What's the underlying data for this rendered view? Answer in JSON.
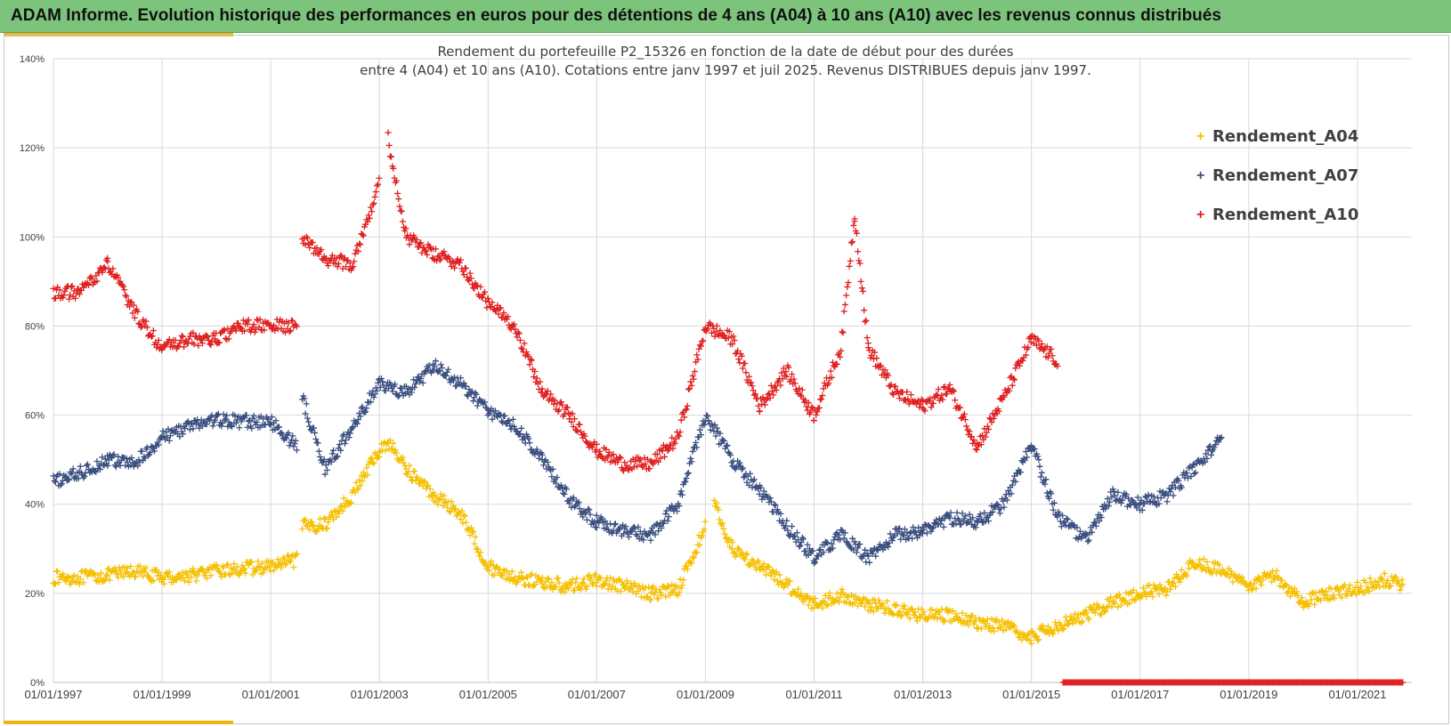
{
  "banner": {
    "title": "ADAM Informe. Evolution historique des performances en euros pour des détentions de 4 ans (A04) à 10 ans (A10) avec les revenus connus distribués",
    "background": "#7cc47c",
    "accent": "#f2b414"
  },
  "chart_data": {
    "type": "scatter",
    "title_lines": [
      "Rendement du portefeuille P2_15326 en fonction de la date de début pour des durées",
      "entre 4 (A04) et 10 ans (A10). Cotations  entre janv 1997 et juil 2025. Revenus DISTRIBUES depuis janv 1997."
    ],
    "marker": "+",
    "ylim": [
      0,
      1.4
    ],
    "yticks": [
      "0%",
      "20%",
      "40%",
      "60%",
      "80%",
      "100%",
      "120%",
      "140%"
    ],
    "xlim": [
      "1997-01-01",
      "2022-01-01"
    ],
    "xticks": [
      "01/01/1997",
      "01/01/1999",
      "01/01/2001",
      "01/01/2003",
      "01/01/2005",
      "01/01/2007",
      "01/01/2009",
      "01/01/2011",
      "01/01/2013",
      "01/01/2015",
      "01/01/2017",
      "01/01/2019",
      "01/01/2021"
    ],
    "grid": true,
    "legend_position": "top-right",
    "series": [
      {
        "name": "Rendement_A04",
        "color": "#f5c000",
        "points": [
          [
            "1997-01",
            0.235
          ],
          [
            "1997-07",
            0.235
          ],
          [
            "1998-01",
            0.24
          ],
          [
            "1998-07",
            0.25
          ],
          [
            "1999-01",
            0.235
          ],
          [
            "1999-07",
            0.24
          ],
          [
            "2000-01",
            0.25
          ],
          [
            "2000-07",
            0.255
          ],
          [
            "2001-01",
            0.26
          ],
          [
            "2001-07",
            0.275
          ],
          [
            "2001-08",
            0.35
          ],
          [
            "2002-01",
            0.355
          ],
          [
            "2002-07",
            0.42
          ],
          [
            "2003-01",
            0.52
          ],
          [
            "2003-03",
            0.54
          ],
          [
            "2003-07",
            0.48
          ],
          [
            "2004-01",
            0.42
          ],
          [
            "2004-07",
            0.38
          ],
          [
            "2005-01",
            0.26
          ],
          [
            "2005-07",
            0.235
          ],
          [
            "2006-01",
            0.225
          ],
          [
            "2006-07",
            0.215
          ],
          [
            "2007-01",
            0.23
          ],
          [
            "2007-07",
            0.215
          ],
          [
            "2008-01",
            0.2
          ],
          [
            "2008-07",
            0.21
          ],
          [
            "2009-01",
            0.35
          ],
          [
            "2009-03",
            0.4
          ],
          [
            "2009-07",
            0.3
          ],
          [
            "2010-01",
            0.26
          ],
          [
            "2010-07",
            0.22
          ],
          [
            "2011-01",
            0.175
          ],
          [
            "2011-07",
            0.195
          ],
          [
            "2012-01",
            0.175
          ],
          [
            "2012-07",
            0.165
          ],
          [
            "2013-01",
            0.15
          ],
          [
            "2013-07",
            0.15
          ],
          [
            "2014-01",
            0.135
          ],
          [
            "2014-07",
            0.125
          ],
          [
            "2015-01",
            0.1
          ],
          [
            "2015-07",
            0.13
          ],
          [
            "2016-01",
            0.15
          ],
          [
            "2016-07",
            0.18
          ],
          [
            "2017-01",
            0.2
          ],
          [
            "2017-07",
            0.21
          ],
          [
            "2018-01",
            0.27
          ],
          [
            "2018-07",
            0.25
          ],
          [
            "2019-01",
            0.22
          ],
          [
            "2019-07",
            0.24
          ],
          [
            "2020-01",
            0.18
          ],
          [
            "2020-07",
            0.2
          ],
          [
            "2021-01",
            0.21
          ],
          [
            "2021-07",
            0.23
          ],
          [
            "2021-11",
            0.22
          ]
        ]
      },
      {
        "name": "Rendement_A07",
        "color": "#3b4f80",
        "points": [
          [
            "1997-01",
            0.45
          ],
          [
            "1997-07",
            0.47
          ],
          [
            "1998-01",
            0.5
          ],
          [
            "1998-07",
            0.49
          ],
          [
            "1999-01",
            0.55
          ],
          [
            "1999-07",
            0.575
          ],
          [
            "2000-01",
            0.59
          ],
          [
            "2000-07",
            0.585
          ],
          [
            "2001-01",
            0.585
          ],
          [
            "2001-07",
            0.53
          ],
          [
            "2001-08",
            0.64
          ],
          [
            "2002-01",
            0.48
          ],
          [
            "2002-07",
            0.57
          ],
          [
            "2003-01",
            0.67
          ],
          [
            "2003-07",
            0.65
          ],
          [
            "2004-01",
            0.71
          ],
          [
            "2004-07",
            0.67
          ],
          [
            "2005-01",
            0.61
          ],
          [
            "2005-07",
            0.575
          ],
          [
            "2006-01",
            0.5
          ],
          [
            "2006-07",
            0.41
          ],
          [
            "2007-01",
            0.36
          ],
          [
            "2007-07",
            0.34
          ],
          [
            "2008-01",
            0.33
          ],
          [
            "2008-07",
            0.4
          ],
          [
            "2009-01",
            0.6
          ],
          [
            "2009-07",
            0.5
          ],
          [
            "2010-01",
            0.43
          ],
          [
            "2010-07",
            0.35
          ],
          [
            "2011-01",
            0.28
          ],
          [
            "2011-07",
            0.33
          ],
          [
            "2012-01",
            0.28
          ],
          [
            "2012-07",
            0.33
          ],
          [
            "2013-01",
            0.34
          ],
          [
            "2013-07",
            0.37
          ],
          [
            "2014-01",
            0.36
          ],
          [
            "2014-07",
            0.4
          ],
          [
            "2015-01",
            0.53
          ],
          [
            "2015-07",
            0.37
          ],
          [
            "2016-01",
            0.32
          ],
          [
            "2016-07",
            0.42
          ],
          [
            "2017-01",
            0.4
          ],
          [
            "2017-07",
            0.42
          ],
          [
            "2018-01",
            0.48
          ],
          [
            "2018-07",
            0.55
          ]
        ]
      },
      {
        "name": "Rendement_A10",
        "color": "#e02020",
        "points": [
          [
            "1997-01",
            0.875
          ],
          [
            "1997-07",
            0.875
          ],
          [
            "1998-01",
            0.94
          ],
          [
            "1998-07",
            0.83
          ],
          [
            "1999-01",
            0.75
          ],
          [
            "1999-07",
            0.77
          ],
          [
            "2000-01",
            0.77
          ],
          [
            "2000-07",
            0.8
          ],
          [
            "2001-01",
            0.8
          ],
          [
            "2001-07",
            0.8
          ],
          [
            "2001-08",
            1.0
          ],
          [
            "2002-01",
            0.95
          ],
          [
            "2002-07",
            0.94
          ],
          [
            "2003-01",
            1.12
          ],
          [
            "2003-03",
            1.22
          ],
          [
            "2003-07",
            1.0
          ],
          [
            "2004-01",
            0.96
          ],
          [
            "2004-07",
            0.94
          ],
          [
            "2005-01",
            0.85
          ],
          [
            "2005-07",
            0.8
          ],
          [
            "2006-01",
            0.65
          ],
          [
            "2006-07",
            0.6
          ],
          [
            "2007-01",
            0.52
          ],
          [
            "2007-07",
            0.49
          ],
          [
            "2008-01",
            0.49
          ],
          [
            "2008-07",
            0.55
          ],
          [
            "2009-01",
            0.8
          ],
          [
            "2009-07",
            0.77
          ],
          [
            "2010-01",
            0.62
          ],
          [
            "2010-07",
            0.7
          ],
          [
            "2011-01",
            0.6
          ],
          [
            "2011-07",
            0.75
          ],
          [
            "2011-10",
            1.05
          ],
          [
            "2012-01",
            0.75
          ],
          [
            "2012-07",
            0.65
          ],
          [
            "2013-01",
            0.62
          ],
          [
            "2013-07",
            0.66
          ],
          [
            "2014-01",
            0.53
          ],
          [
            "2014-07",
            0.64
          ],
          [
            "2015-01",
            0.77
          ],
          [
            "2015-07",
            0.72
          ],
          [
            "2015-08",
            0.0
          ],
          [
            "2016-07",
            0.0
          ],
          [
            "2017-07",
            0.0
          ],
          [
            "2018-07",
            0.0
          ],
          [
            "2019-07",
            0.0
          ],
          [
            "2020-07",
            0.0
          ],
          [
            "2021-11",
            0.0
          ]
        ]
      }
    ]
  }
}
